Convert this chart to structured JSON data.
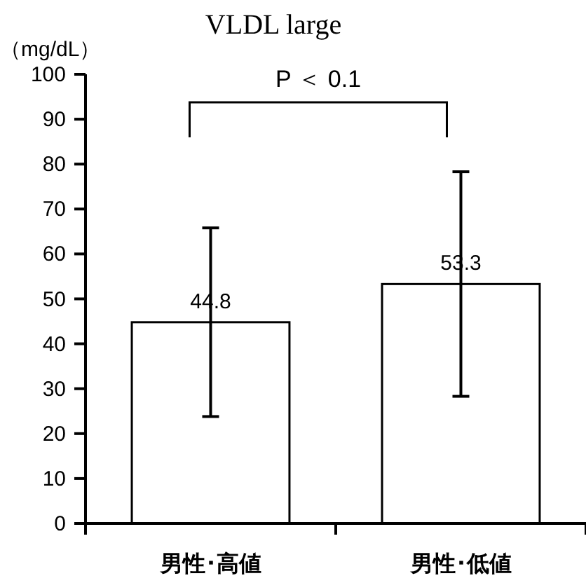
{
  "chart_data": {
    "type": "bar",
    "title": "VLDL large",
    "ylabel": "（mg/dL）",
    "categories": [
      "男性･高値",
      "男性･低値"
    ],
    "values": [
      44.8,
      53.3
    ],
    "errors": [
      21,
      25
    ],
    "color": "#ffffff",
    "ylim": [
      0,
      100
    ],
    "yticks": [
      0,
      10,
      20,
      30,
      40,
      50,
      60,
      70,
      80,
      90,
      100
    ],
    "data_labels": true,
    "grid": false,
    "annotations": [
      "P ＜ 0.1"
    ]
  }
}
